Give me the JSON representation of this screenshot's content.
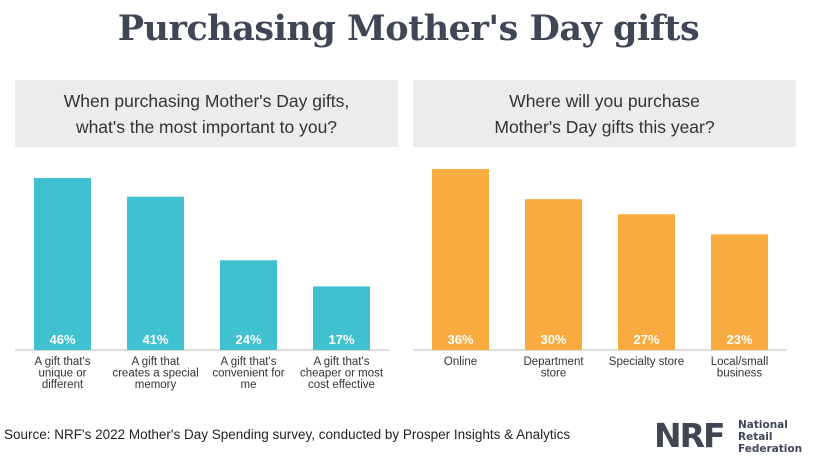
{
  "title": "Purchasing Mother's Day gifts",
  "chart_data": [
    {
      "type": "bar",
      "title_lines": [
        "When purchasing Mother's Day gifts,",
        "what's the most important to you?"
      ],
      "categories": [
        [
          "A gift that's",
          "unique or",
          "different"
        ],
        [
          "A gift that",
          "creates a special",
          "memory"
        ],
        [
          "A gift that's",
          "convenient for",
          "me"
        ],
        [
          "A gift that's",
          "cheaper or most",
          "cost effective"
        ]
      ],
      "values": [
        46,
        41,
        24,
        17
      ],
      "value_labels": [
        "46%",
        "41%",
        "24%",
        "17%"
      ],
      "unit": "%",
      "color": "#3fc1cf",
      "ylim": [
        0,
        50
      ]
    },
    {
      "type": "bar",
      "title_lines": [
        "Where will you purchase",
        "Mother's Day gifts this year?"
      ],
      "categories": [
        [
          "Online"
        ],
        [
          "Department",
          "store"
        ],
        [
          "Specialty store"
        ],
        [
          "Local/small",
          "business"
        ]
      ],
      "values": [
        36,
        30,
        27,
        23
      ],
      "value_labels": [
        "36%",
        "30%",
        "27%",
        "23%"
      ],
      "unit": "%",
      "color": "#f8ac40",
      "ylim": [
        0,
        40
      ]
    }
  ],
  "source": "Source: NRF's 2022 Mother's Day Spending survey, conducted by Prosper Insights & Analytics",
  "logo": {
    "mark": "NRF",
    "lines": [
      "National",
      "Retail",
      "Federation"
    ]
  }
}
